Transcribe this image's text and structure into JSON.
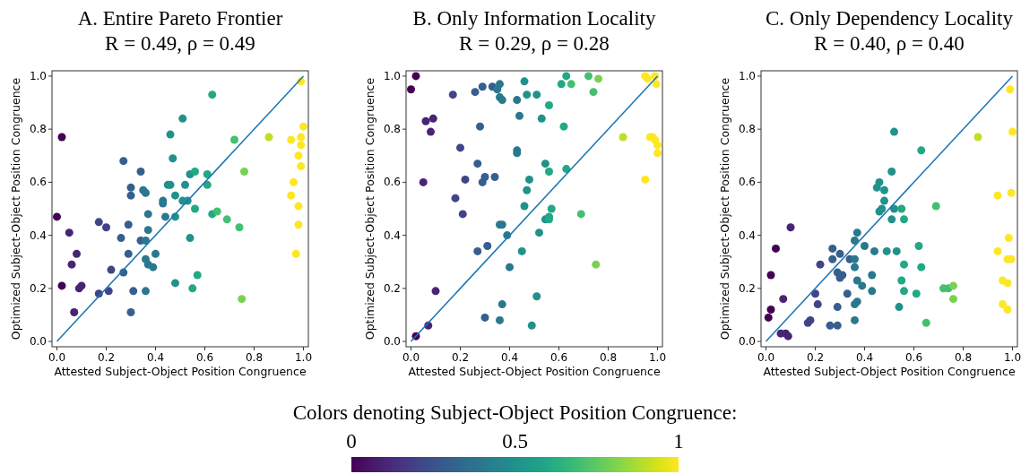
{
  "chart_data": [
    {
      "type": "scatter",
      "title": "A. Entire Pareto Frontier",
      "subtitle": "R = 0.49, ρ = 0.49",
      "xlabel": "Attested Subject-Object Position Congruence",
      "ylabel": "Optimized Subject-Object Position Congruence",
      "xlim": [
        -0.02,
        1.02
      ],
      "ylim": [
        -0.02,
        1.02
      ],
      "xticks": [
        {
          "value": 0,
          "label": "0.0"
        },
        {
          "value": 0.2,
          "label": "0.2"
        },
        {
          "value": 0.4,
          "label": "0.4"
        },
        {
          "value": 0.6,
          "label": "0.6"
        },
        {
          "value": 0.8,
          "label": "0.8"
        },
        {
          "value": 1,
          "label": "1.0"
        }
      ],
      "yticks": [
        {
          "value": 0,
          "label": "0.0"
        },
        {
          "value": 0.2,
          "label": "0.2"
        },
        {
          "value": 0.4,
          "label": "0.4"
        },
        {
          "value": 0.6,
          "label": "0.6"
        },
        {
          "value": 0.8,
          "label": "0.8"
        },
        {
          "value": 1,
          "label": "1.0"
        }
      ],
      "grid": false,
      "clabel": "Colors denoting Subject-Object Position Congruence:",
      "clim": [
        0,
        1
      ],
      "cticks": [
        0,
        0.5,
        1
      ],
      "series": [
        {
          "marker": "circle",
          "x": [
            0.02,
            0.0,
            0.05,
            0.08,
            0.06,
            0.02,
            0.09,
            0.1,
            0.07,
            0.17,
            0.2,
            0.22,
            0.17,
            0.21,
            0.27,
            0.34,
            0.3,
            0.3,
            0.35,
            0.36,
            0.37,
            0.26,
            0.29,
            0.37,
            0.34,
            0.36,
            0.29,
            0.27,
            0.36,
            0.37,
            0.31,
            0.36,
            0.3,
            0.4,
            0.39,
            0.46,
            0.47,
            0.45,
            0.46,
            0.43,
            0.43,
            0.48,
            0.44,
            0.48,
            0.48,
            0.51,
            0.52,
            0.51,
            0.53,
            0.54,
            0.56,
            0.56,
            0.54,
            0.57,
            0.55,
            0.63,
            0.61,
            0.61,
            0.63,
            0.65,
            0.69,
            0.72,
            0.74,
            0.76,
            0.75,
            0.86,
            0.99,
            0.95,
            1.0,
            0.99,
            0.99,
            0.98,
            0.99,
            0.96,
            0.95,
            0.98,
            0.98,
            0.97
          ],
          "values": [
            0.77,
            0.47,
            0.41,
            0.33,
            0.29,
            0.21,
            0.2,
            0.21,
            0.11,
            0.45,
            0.43,
            0.27,
            0.18,
            0.19,
            0.68,
            0.64,
            0.58,
            0.55,
            0.57,
            0.56,
            0.48,
            0.39,
            0.44,
            0.42,
            0.38,
            0.38,
            0.33,
            0.26,
            0.31,
            0.29,
            0.19,
            0.19,
            0.11,
            0.33,
            0.28,
            0.78,
            0.69,
            0.59,
            0.59,
            0.53,
            0.52,
            0.55,
            0.47,
            0.47,
            0.22,
            0.84,
            0.59,
            0.53,
            0.53,
            0.63,
            0.64,
            0.5,
            0.39,
            0.25,
            0.2,
            0.93,
            0.63,
            0.59,
            0.48,
            0.49,
            0.46,
            0.76,
            0.43,
            0.64,
            0.16,
            0.77,
            0.98,
            0.76,
            0.81,
            0.77,
            0.74,
            0.7,
            0.66,
            0.6,
            0.55,
            0.51,
            0.44,
            0.33
          ],
          "colors": [
            "#440154",
            "#440154",
            "#482475",
            "#482475",
            "#482475",
            "#440154",
            "#482475",
            "#482475",
            "#482475",
            "#414487",
            "#414487",
            "#414487",
            "#414487",
            "#414487",
            "#355f8d",
            "#355f8d",
            "#355f8d",
            "#355f8d",
            "#2a788e",
            "#2a788e",
            "#2a788e",
            "#355f8d",
            "#355f8d",
            "#2a788e",
            "#355f8d",
            "#2a788e",
            "#355f8d",
            "#355f8d",
            "#2a788e",
            "#2a788e",
            "#355f8d",
            "#2a788e",
            "#355f8d",
            "#2a788e",
            "#2a788e",
            "#21918c",
            "#21918c",
            "#21918c",
            "#21918c",
            "#2a788e",
            "#2a788e",
            "#21918c",
            "#2a788e",
            "#21918c",
            "#21918c",
            "#21918c",
            "#21918c",
            "#21918c",
            "#21918c",
            "#21918c",
            "#22a884",
            "#22a884",
            "#21918c",
            "#22a884",
            "#22a884",
            "#22a884",
            "#22a884",
            "#22a884",
            "#22a884",
            "#44bf70",
            "#44bf70",
            "#44bf70",
            "#44bf70",
            "#7ad151",
            "#7ad151",
            "#bddf26",
            "#fde725",
            "#fde725",
            "#fde725",
            "#fde725",
            "#fde725",
            "#fde725",
            "#fde725",
            "#fde725",
            "#fde725",
            "#fde725",
            "#fde725",
            "#fde725"
          ]
        },
        {
          "type": "line",
          "color": "#1f77b4",
          "x": [
            0,
            1
          ],
          "values": [
            0,
            1
          ]
        }
      ]
    },
    {
      "type": "scatter",
      "title": "B. Only Information Locality",
      "subtitle": "R = 0.29, ρ = 0.28",
      "xlabel": "Attested Subject-Object Position Congruence",
      "ylabel": "Optimized Subject-Object Position Congruence",
      "xlim": [
        -0.02,
        1.02
      ],
      "ylim": [
        -0.02,
        1.02
      ],
      "xticks": [
        {
          "value": 0,
          "label": "0.0"
        },
        {
          "value": 0.2,
          "label": "0.2"
        },
        {
          "value": 0.4,
          "label": "0.4"
        },
        {
          "value": 0.6,
          "label": "0.6"
        },
        {
          "value": 0.8,
          "label": "0.8"
        },
        {
          "value": 1,
          "label": "1.0"
        }
      ],
      "yticks": [
        {
          "value": 0,
          "label": "0.0"
        },
        {
          "value": 0.2,
          "label": "0.2"
        },
        {
          "value": 0.4,
          "label": "0.4"
        },
        {
          "value": 0.6,
          "label": "0.6"
        },
        {
          "value": 0.8,
          "label": "0.8"
        },
        {
          "value": 1,
          "label": "1.0"
        }
      ],
      "grid": false,
      "series": [
        {
          "marker": "circle",
          "x": [
            0.02,
            0.0,
            0.17,
            0.06,
            0.09,
            0.08,
            0.05,
            0.1,
            0.07,
            0.02,
            0.2,
            0.18,
            0.22,
            0.21,
            0.26,
            0.29,
            0.33,
            0.35,
            0.36,
            0.36,
            0.37,
            0.28,
            0.27,
            0.3,
            0.29,
            0.34,
            0.36,
            0.37,
            0.31,
            0.27,
            0.3,
            0.36,
            0.37,
            0.39,
            0.4,
            0.46,
            0.43,
            0.47,
            0.44,
            0.43,
            0.43,
            0.48,
            0.47,
            0.46,
            0.45,
            0.49,
            0.51,
            0.56,
            0.53,
            0.545,
            0.56,
            0.57,
            0.545,
            0.56,
            0.56,
            0.52,
            0.51,
            0.61,
            0.63,
            0.65,
            0.62,
            0.63,
            0.72,
            0.74,
            0.76,
            0.69,
            0.75,
            0.86,
            0.95,
            0.96,
            0.99,
            0.995,
            0.97,
            0.98,
            0.99,
            1.0,
            1.0,
            0.95
          ],
          "values": [
            1.0,
            0.95,
            0.93,
            0.83,
            0.84,
            0.79,
            0.6,
            0.19,
            0.06,
            0.02,
            0.73,
            0.54,
            0.61,
            0.48,
            0.94,
            0.96,
            0.96,
            0.95,
            0.97,
            0.92,
            0.91,
            0.81,
            0.67,
            0.62,
            0.6,
            0.62,
            0.44,
            0.44,
            0.36,
            0.34,
            0.09,
            0.08,
            0.14,
            0.4,
            0.28,
            0.98,
            0.91,
            0.93,
            0.85,
            0.72,
            0.71,
            0.61,
            0.57,
            0.51,
            0.34,
            0.06,
            0.93,
            0.89,
            0.84,
            0.67,
            0.64,
            0.5,
            0.46,
            0.47,
            0.46,
            0.41,
            0.17,
            0.97,
            1.0,
            0.97,
            0.81,
            0.65,
            1.0,
            0.94,
            0.99,
            0.48,
            0.29,
            0.77,
            1.0,
            0.99,
            1.0,
            0.97,
            0.77,
            0.77,
            0.76,
            0.74,
            0.71,
            0.61
          ],
          "colors": [
            "#440154",
            "#440154",
            "#414487",
            "#482475",
            "#482475",
            "#482475",
            "#482475",
            "#482475",
            "#482475",
            "#440154",
            "#414487",
            "#414487",
            "#414487",
            "#414487",
            "#355f8d",
            "#355f8d",
            "#355f8d",
            "#2a788e",
            "#2a788e",
            "#2a788e",
            "#2a788e",
            "#355f8d",
            "#355f8d",
            "#355f8d",
            "#355f8d",
            "#355f8d",
            "#2a788e",
            "#2a788e",
            "#355f8d",
            "#355f8d",
            "#355f8d",
            "#2a788e",
            "#2a788e",
            "#2a788e",
            "#2a788e",
            "#21918c",
            "#2a788e",
            "#21918c",
            "#2a788e",
            "#2a788e",
            "#2a788e",
            "#21918c",
            "#21918c",
            "#21918c",
            "#21918c",
            "#21918c",
            "#21918c",
            "#22a884",
            "#21918c",
            "#21918c",
            "#22a884",
            "#22a884",
            "#21918c",
            "#22a884",
            "#22a884",
            "#21918c",
            "#21918c",
            "#22a884",
            "#22a884",
            "#44bf70",
            "#22a884",
            "#22a884",
            "#44bf70",
            "#44bf70",
            "#7ad151",
            "#44bf70",
            "#7ad151",
            "#bddf26",
            "#fde725",
            "#fde725",
            "#fde725",
            "#fde725",
            "#fde725",
            "#fde725",
            "#fde725",
            "#fde725",
            "#fde725",
            "#fde725"
          ]
        },
        {
          "type": "line",
          "color": "#1f77b4",
          "x": [
            0,
            1
          ],
          "values": [
            0,
            1
          ]
        }
      ]
    },
    {
      "type": "scatter",
      "title": "C. Only Dependency Locality",
      "subtitle": "R = 0.40, ρ = 0.40",
      "xlabel": "Attested Subject-Object Position Congruence",
      "ylabel": "Optimized Subject-Object Position Congruence",
      "xlim": [
        -0.02,
        1.02
      ],
      "ylim": [
        -0.02,
        1.02
      ],
      "xticks": [
        {
          "value": 0,
          "label": "0.0"
        },
        {
          "value": 0.2,
          "label": "0.2"
        },
        {
          "value": 0.4,
          "label": "0.4"
        },
        {
          "value": 0.6,
          "label": "0.6"
        },
        {
          "value": 0.8,
          "label": "0.8"
        },
        {
          "value": 1,
          "label": "1.0"
        }
      ],
      "yticks": [
        {
          "value": 0,
          "label": "0.0"
        },
        {
          "value": 0.2,
          "label": "0.2"
        },
        {
          "value": 0.4,
          "label": "0.4"
        },
        {
          "value": 0.6,
          "label": "0.6"
        },
        {
          "value": 0.8,
          "label": "0.8"
        },
        {
          "value": 1,
          "label": "1.0"
        }
      ],
      "grid": false,
      "series": [
        {
          "marker": "circle",
          "x": [
            0.01,
            0.02,
            0.02,
            0.04,
            0.1,
            0.07,
            0.06,
            0.08,
            0.09,
            0.17,
            0.18,
            0.2,
            0.21,
            0.22,
            0.26,
            0.29,
            0.29,
            0.27,
            0.27,
            0.3,
            0.29,
            0.3,
            0.31,
            0.33,
            0.34,
            0.36,
            0.37,
            0.36,
            0.36,
            0.37,
            0.37,
            0.36,
            0.36,
            0.39,
            0.4,
            0.44,
            0.43,
            0.43,
            0.45,
            0.46,
            0.48,
            0.48,
            0.46,
            0.47,
            0.49,
            0.52,
            0.51,
            0.51,
            0.52,
            0.55,
            0.56,
            0.53,
            0.56,
            0.55,
            0.56,
            0.54,
            0.62,
            0.63,
            0.61,
            0.63,
            0.65,
            0.69,
            0.72,
            0.74,
            0.76,
            0.76,
            0.86,
            0.99,
            1.0,
            0.995,
            0.94,
            0.985,
            0.94,
            0.98,
            0.995,
            0.96,
            0.98,
            0.96,
            0.98
          ],
          "values": [
            0.09,
            0.12,
            0.25,
            0.35,
            0.43,
            0.16,
            0.03,
            0.03,
            0.02,
            0.07,
            0.08,
            0.18,
            0.14,
            0.29,
            0.06,
            0.06,
            0.13,
            0.35,
            0.31,
            0.33,
            0.26,
            0.24,
            0.25,
            0.18,
            0.31,
            0.31,
            0.41,
            0.38,
            0.28,
            0.23,
            0.15,
            0.14,
            0.08,
            0.21,
            0.36,
            0.34,
            0.25,
            0.19,
            0.58,
            0.6,
            0.57,
            0.53,
            0.49,
            0.5,
            0.34,
            0.79,
            0.64,
            0.46,
            0.5,
            0.5,
            0.46,
            0.34,
            0.29,
            0.23,
            0.19,
            0.13,
            0.36,
            0.28,
            0.18,
            0.72,
            0.07,
            0.51,
            0.2,
            0.2,
            0.21,
            0.16,
            0.77,
            0.95,
            0.79,
            0.56,
            0.55,
            0.39,
            0.34,
            0.31,
            0.31,
            0.23,
            0.22,
            0.14,
            0.12
          ],
          "colors": [
            "#440154",
            "#440154",
            "#440154",
            "#440154",
            "#482475",
            "#482475",
            "#482475",
            "#482475",
            "#482475",
            "#414487",
            "#414487",
            "#414487",
            "#414487",
            "#414487",
            "#355f8d",
            "#355f8d",
            "#355f8d",
            "#355f8d",
            "#355f8d",
            "#355f8d",
            "#355f8d",
            "#355f8d",
            "#355f8d",
            "#355f8d",
            "#355f8d",
            "#2a788e",
            "#2a788e",
            "#2a788e",
            "#2a788e",
            "#2a788e",
            "#2a788e",
            "#2a788e",
            "#2a788e",
            "#2a788e",
            "#2a788e",
            "#2a788e",
            "#2a788e",
            "#2a788e",
            "#21918c",
            "#21918c",
            "#21918c",
            "#21918c",
            "#21918c",
            "#21918c",
            "#21918c",
            "#21918c",
            "#21918c",
            "#21918c",
            "#21918c",
            "#22a884",
            "#22a884",
            "#21918c",
            "#22a884",
            "#22a884",
            "#22a884",
            "#21918c",
            "#22a884",
            "#22a884",
            "#22a884",
            "#22a884",
            "#44bf70",
            "#44bf70",
            "#44bf70",
            "#44bf70",
            "#7ad151",
            "#7ad151",
            "#bddf26",
            "#fde725",
            "#fde725",
            "#fde725",
            "#fde725",
            "#fde725",
            "#fde725",
            "#fde725",
            "#fde725",
            "#fde725",
            "#fde725",
            "#fde725",
            "#fde725"
          ]
        },
        {
          "type": "line",
          "color": "#1f77b4",
          "x": [
            0,
            1
          ],
          "values": [
            0,
            1
          ]
        }
      ]
    }
  ]
}
